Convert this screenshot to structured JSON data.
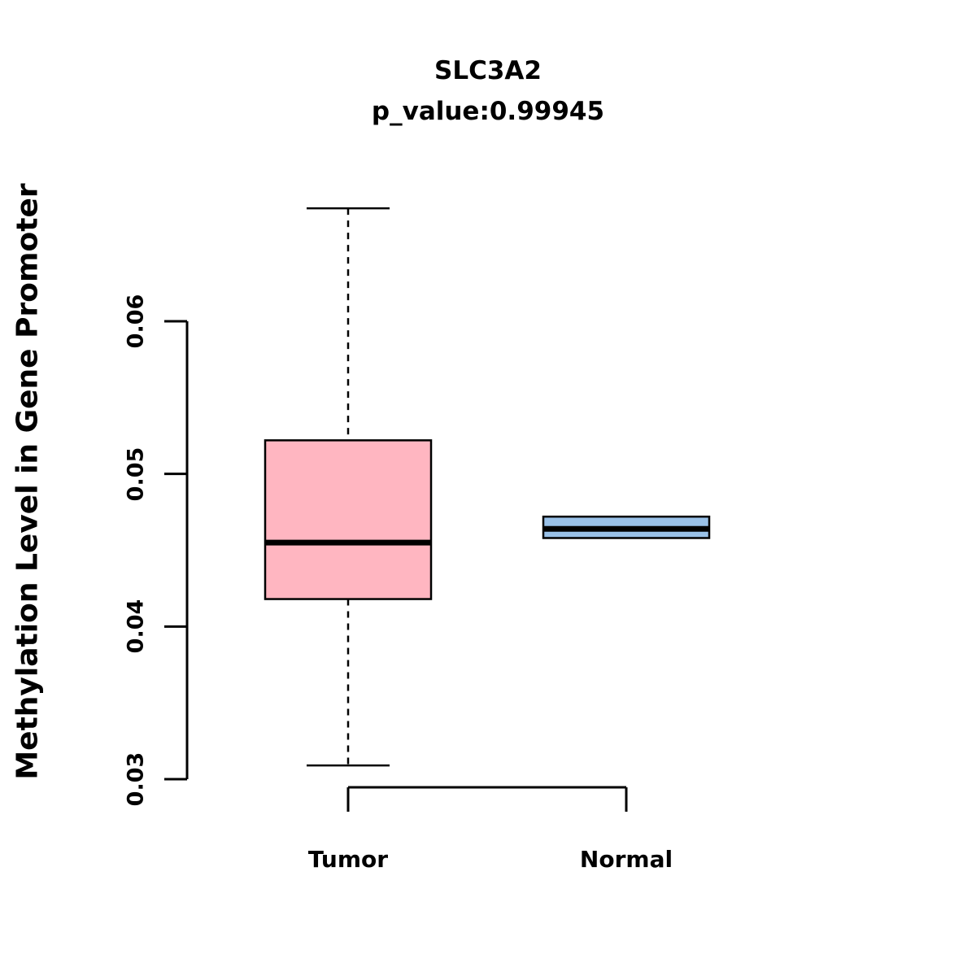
{
  "chart_data": {
    "type": "boxplot",
    "title": "SLC3A2",
    "subtitle": "p_value:0.99945",
    "ylabel": "Methylation Level in Gene Promoter",
    "xlabel": "",
    "categories": [
      "Tumor",
      "Normal"
    ],
    "yticks": [
      0.06,
      0.05,
      0.04,
      0.03
    ],
    "ytick_labels": [
      "0.06",
      "0.05",
      "0.04",
      "0.03"
    ],
    "ylim": [
      0.028,
      0.0695
    ],
    "grid": false,
    "legend": false,
    "series": [
      {
        "name": "Tumor",
        "fill_color": "#FFB6C1",
        "lower_whisker": 0.0309,
        "q1": 0.0418,
        "median": 0.0455,
        "q3": 0.0522,
        "upper_whisker": 0.0674
      },
      {
        "name": "Normal",
        "fill_color": "#99C1E8",
        "lower_whisker": 0.0458,
        "q1": 0.0458,
        "median": 0.0464,
        "q3": 0.0472,
        "upper_whisker": 0.0472
      }
    ],
    "colors": {
      "box_border": "#000000",
      "median_line": "#000000",
      "axis": "#000000",
      "background": "#ffffff"
    }
  }
}
